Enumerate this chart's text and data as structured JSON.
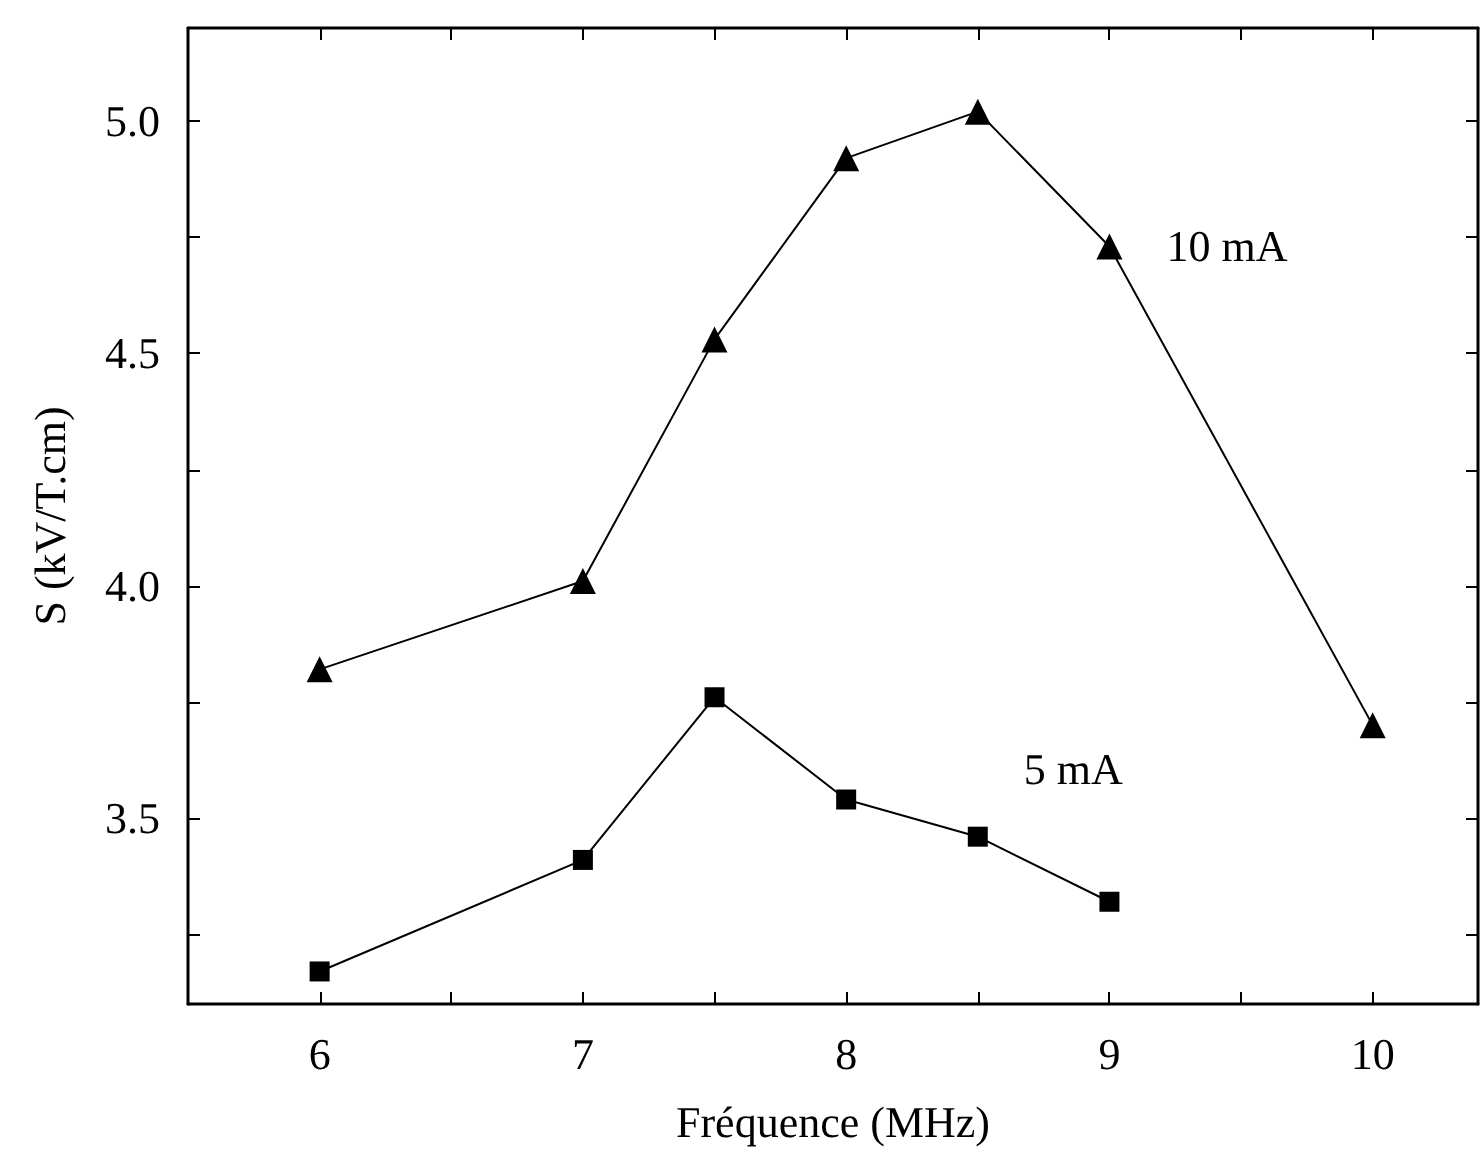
{
  "chart_data": {
    "type": "line",
    "xlabel": "Fréquence (MHz)",
    "ylabel": "S (kV/T.cm)",
    "xlim": [
      5.5,
      10.4
    ],
    "xticks": [
      6,
      {
        "value": 6.5,
        "label": null
      },
      7,
      {
        "value": 7.5,
        "label": null
      },
      8,
      {
        "value": 8.5,
        "label": null
      },
      9,
      {
        "value": 9.5,
        "label": null
      },
      10
    ],
    "ylim": [
      3.1,
      5.2
    ],
    "yticks": [
      {
        "value": 3.25,
        "label": null
      },
      3.5,
      {
        "value": 3.75,
        "label": null
      },
      {
        "value": 4,
        "label": "4.0"
      },
      {
        "value": 4.25,
        "label": null
      },
      4.5,
      {
        "value": 4.75,
        "label": null
      },
      {
        "value": 5,
        "label": "5.0"
      }
    ],
    "series": [
      {
        "name": "10 mA",
        "color": "#000000",
        "marker": "triangle",
        "x": [
          6,
          7,
          7.5,
          8,
          8.5,
          9,
          10
        ],
        "values": [
          3.82,
          4.01,
          4.53,
          4.92,
          5.02,
          4.73,
          3.7
        ]
      },
      {
        "name": "5 mA",
        "color": "#000000",
        "marker": "square",
        "x": [
          6,
          7,
          7.5,
          8,
          8.5,
          9
        ],
        "values": [
          3.17,
          3.41,
          3.76,
          3.54,
          3.46,
          3.32
        ]
      }
    ],
    "grid": false,
    "legend": false,
    "line_style": "solid"
  }
}
